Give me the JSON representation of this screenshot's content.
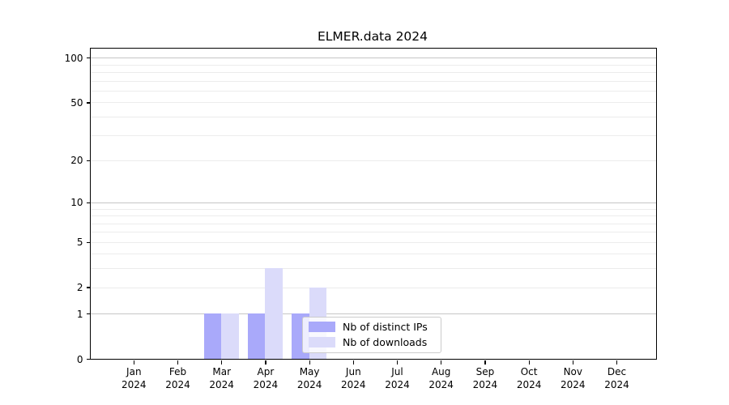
{
  "chart_data": {
    "type": "bar",
    "title": "ELMER.data 2024",
    "categories": [
      "Jan 2024",
      "Feb 2024",
      "Mar 2024",
      "Apr 2024",
      "May 2024",
      "Jun 2024",
      "Jul 2024",
      "Aug 2024",
      "Sep 2024",
      "Oct 2024",
      "Nov 2024",
      "Dec 2024"
    ],
    "x_ticks": [
      {
        "month": "Jan",
        "year": "2024"
      },
      {
        "month": "Feb",
        "year": "2024"
      },
      {
        "month": "Mar",
        "year": "2024"
      },
      {
        "month": "Apr",
        "year": "2024"
      },
      {
        "month": "May",
        "year": "2024"
      },
      {
        "month": "Jun",
        "year": "2024"
      },
      {
        "month": "Jul",
        "year": "2024"
      },
      {
        "month": "Aug",
        "year": "2024"
      },
      {
        "month": "Sep",
        "year": "2024"
      },
      {
        "month": "Oct",
        "year": "2024"
      },
      {
        "month": "Nov",
        "year": "2024"
      },
      {
        "month": "Dec",
        "year": "2024"
      }
    ],
    "series": [
      {
        "name": "Nb of distinct IPs",
        "color": "#a9a9fa",
        "values": [
          0,
          0,
          1,
          1,
          1,
          0,
          0,
          0,
          0,
          0,
          0,
          0
        ]
      },
      {
        "name": "Nb of downloads",
        "color": "#dbdbfa",
        "values": [
          0,
          0,
          1,
          3,
          2,
          0,
          0,
          0,
          0,
          0,
          0,
          0
        ]
      }
    ],
    "y_axis": {
      "scale": "log1p",
      "tick_values": [
        0,
        1,
        2,
        5,
        10,
        20,
        50,
        100
      ],
      "major_gridlines": [
        1,
        10,
        100
      ],
      "minor_gridlines": [
        2,
        3,
        4,
        5,
        6,
        7,
        8,
        9,
        20,
        30,
        40,
        50,
        60,
        70,
        80,
        90
      ],
      "max": 116,
      "grid": true
    },
    "legend": {
      "position": "lower-center",
      "entries": [
        "Nb of distinct IPs",
        "Nb of downloads"
      ]
    },
    "colors": {
      "major_grid": "#c6c6c6",
      "minor_grid": "#ececec",
      "axis": "#000000",
      "background": "#ffffff"
    }
  }
}
